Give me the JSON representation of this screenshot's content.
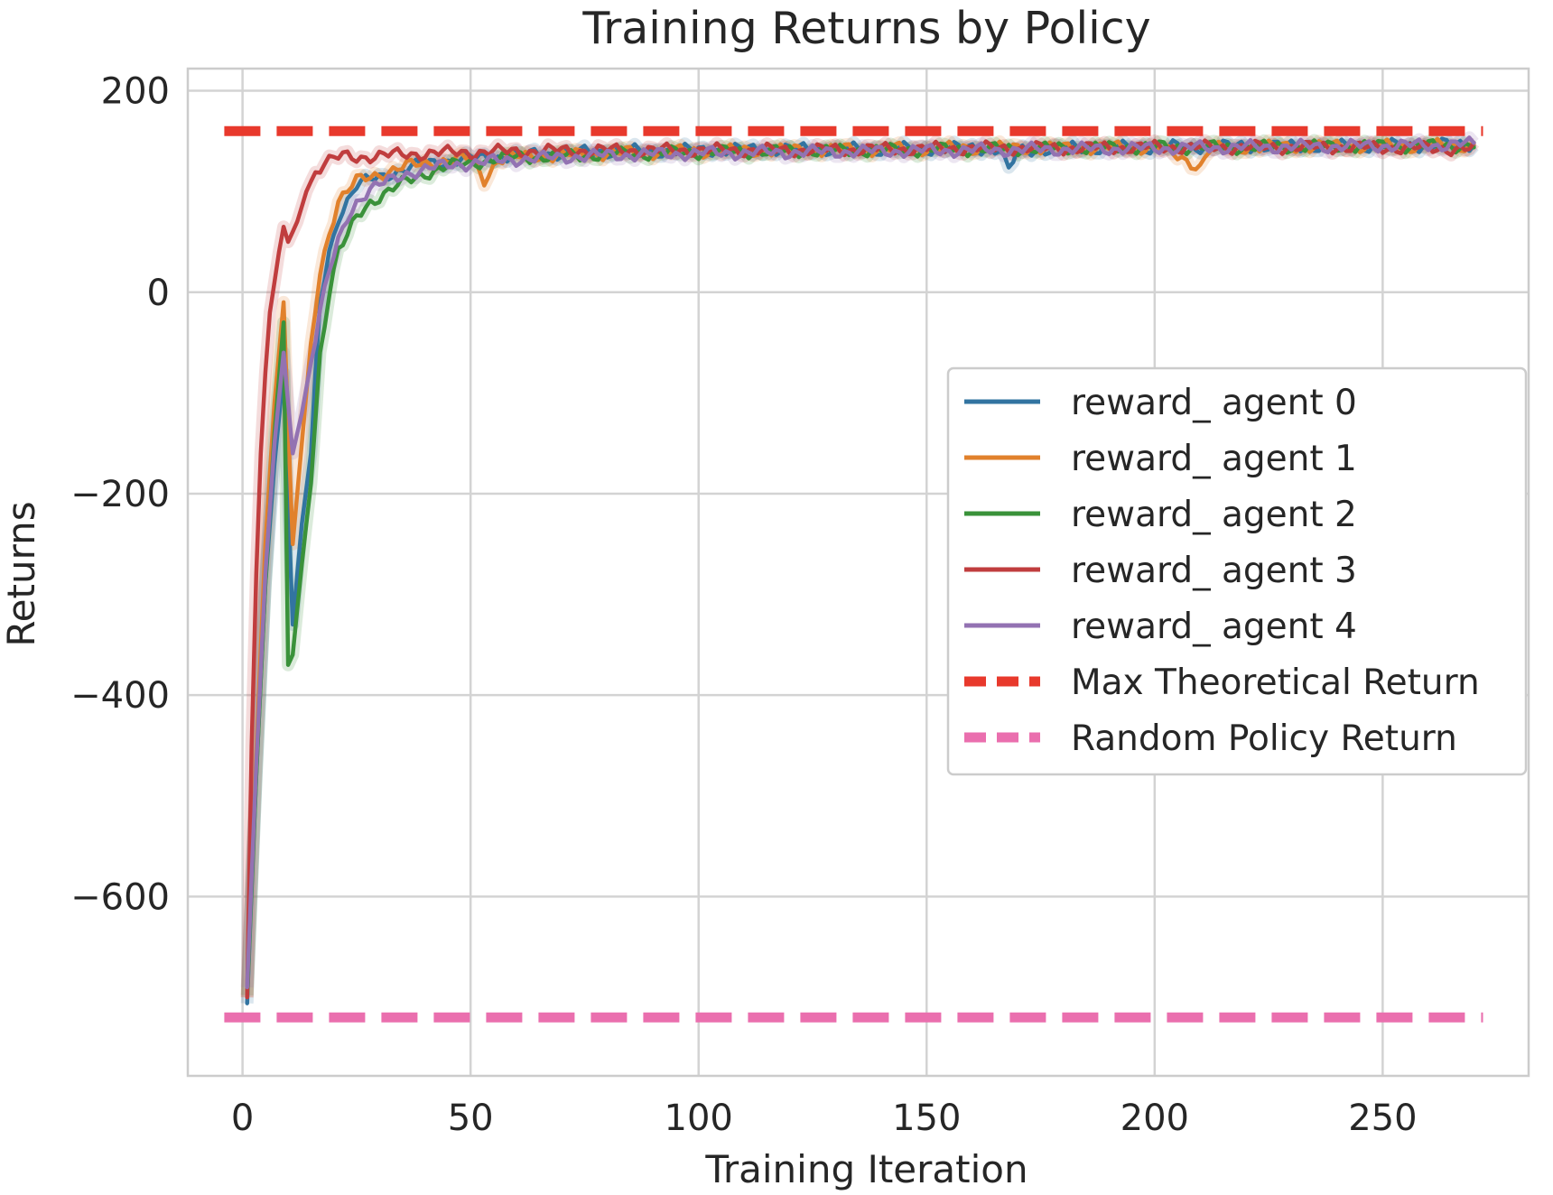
{
  "chart_data": {
    "type": "line",
    "title": "Training Returns by Policy",
    "xlabel": "Training Iteration",
    "ylabel": "Returns",
    "xlim": [
      -12,
      282
    ],
    "ylim": [
      -778,
      222
    ],
    "xticks": [
      0,
      50,
      100,
      150,
      200,
      250
    ],
    "yticks": [
      200,
      0,
      -200,
      -400,
      -600
    ],
    "ytick_labels": [
      "200",
      "0",
      "−200",
      "−400",
      "−600"
    ],
    "grid": true,
    "legend_position": "center-right",
    "series": [
      {
        "name": "reward_ agent 0",
        "color": "#3274a1",
        "points": [
          [
            1,
            -706
          ],
          [
            3,
            -480
          ],
          [
            5,
            -290
          ],
          [
            7,
            -170
          ],
          [
            9,
            -80
          ],
          [
            11,
            -330
          ],
          [
            13,
            -230
          ],
          [
            15,
            -160
          ],
          [
            17,
            -10
          ],
          [
            19,
            40
          ],
          [
            21,
            75
          ],
          [
            23,
            90
          ],
          [
            25,
            105
          ],
          [
            28,
            112
          ],
          [
            32,
            118
          ],
          [
            36,
            122
          ],
          [
            40,
            128
          ],
          [
            45,
            130
          ],
          [
            50,
            133
          ],
          [
            55,
            134
          ],
          [
            60,
            136
          ],
          [
            70,
            138
          ],
          [
            80,
            140
          ],
          [
            90,
            140
          ],
          [
            100,
            141
          ],
          [
            120,
            142
          ],
          [
            140,
            142
          ],
          [
            160,
            143
          ],
          [
            166,
            142
          ],
          [
            168,
            120
          ],
          [
            170,
            140
          ],
          [
            180,
            143
          ],
          [
            200,
            144
          ],
          [
            220,
            145
          ],
          [
            240,
            145
          ],
          [
            260,
            146
          ],
          [
            270,
            147
          ]
        ]
      },
      {
        "name": "reward_ agent 1",
        "color": "#e1812c",
        "points": [
          [
            1,
            -700
          ],
          [
            3,
            -460
          ],
          [
            5,
            -250
          ],
          [
            7,
            -110
          ],
          [
            9,
            -10
          ],
          [
            11,
            -250
          ],
          [
            13,
            -150
          ],
          [
            15,
            -50
          ],
          [
            17,
            20
          ],
          [
            19,
            60
          ],
          [
            21,
            90
          ],
          [
            23,
            100
          ],
          [
            25,
            110
          ],
          [
            28,
            115
          ],
          [
            32,
            120
          ],
          [
            36,
            125
          ],
          [
            40,
            128
          ],
          [
            45,
            131
          ],
          [
            50,
            133
          ],
          [
            53,
            112
          ],
          [
            56,
            132
          ],
          [
            60,
            134
          ],
          [
            70,
            136
          ],
          [
            80,
            138
          ],
          [
            90,
            139
          ],
          [
            100,
            140
          ],
          [
            120,
            141
          ],
          [
            140,
            142
          ],
          [
            160,
            143
          ],
          [
            180,
            143
          ],
          [
            200,
            144
          ],
          [
            210,
            125
          ],
          [
            212,
            142
          ],
          [
            220,
            144
          ],
          [
            240,
            145
          ],
          [
            260,
            145
          ],
          [
            270,
            146
          ]
        ]
      },
      {
        "name": "reward_ agent 2",
        "color": "#3a923a",
        "points": [
          [
            1,
            -698
          ],
          [
            3,
            -480
          ],
          [
            5,
            -290
          ],
          [
            7,
            -140
          ],
          [
            9,
            -30
          ],
          [
            10,
            -370
          ],
          [
            11,
            -360
          ],
          [
            13,
            -270
          ],
          [
            15,
            -190
          ],
          [
            17,
            -60
          ],
          [
            19,
            0
          ],
          [
            21,
            40
          ],
          [
            23,
            55
          ],
          [
            25,
            75
          ],
          [
            28,
            90
          ],
          [
            32,
            100
          ],
          [
            36,
            110
          ],
          [
            40,
            118
          ],
          [
            45,
            125
          ],
          [
            50,
            128
          ],
          [
            55,
            132
          ],
          [
            60,
            134
          ],
          [
            70,
            135
          ],
          [
            80,
            137
          ],
          [
            90,
            138
          ],
          [
            100,
            139
          ],
          [
            120,
            140
          ],
          [
            140,
            141
          ],
          [
            160,
            142
          ],
          [
            180,
            143
          ],
          [
            200,
            144
          ],
          [
            220,
            144
          ],
          [
            240,
            145
          ],
          [
            260,
            145
          ],
          [
            270,
            146
          ]
        ]
      },
      {
        "name": "reward_ agent 3",
        "color": "#c03d3e",
        "points": [
          [
            1,
            -700
          ],
          [
            2,
            -450
          ],
          [
            3,
            -280
          ],
          [
            4,
            -160
          ],
          [
            5,
            -80
          ],
          [
            6,
            -20
          ],
          [
            7,
            10
          ],
          [
            8,
            40
          ],
          [
            9,
            65
          ],
          [
            10,
            50
          ],
          [
            12,
            70
          ],
          [
            14,
            100
          ],
          [
            16,
            120
          ],
          [
            18,
            128
          ],
          [
            20,
            132
          ],
          [
            22,
            135
          ],
          [
            25,
            134
          ],
          [
            28,
            135
          ],
          [
            32,
            136
          ],
          [
            36,
            137
          ],
          [
            40,
            138
          ],
          [
            50,
            139
          ],
          [
            60,
            140
          ],
          [
            80,
            141
          ],
          [
            100,
            141
          ],
          [
            120,
            141
          ],
          [
            140,
            142
          ],
          [
            160,
            143
          ],
          [
            180,
            143
          ],
          [
            200,
            144
          ],
          [
            220,
            144
          ],
          [
            240,
            144
          ],
          [
            260,
            143
          ],
          [
            270,
            142
          ]
        ]
      },
      {
        "name": "reward_ agent 4",
        "color": "#9372b2",
        "points": [
          [
            1,
            -690
          ],
          [
            3,
            -470
          ],
          [
            5,
            -280
          ],
          [
            7,
            -150
          ],
          [
            9,
            -60
          ],
          [
            11,
            -160
          ],
          [
            13,
            -120
          ],
          [
            15,
            -70
          ],
          [
            17,
            -20
          ],
          [
            19,
            20
          ],
          [
            21,
            50
          ],
          [
            23,
            75
          ],
          [
            25,
            90
          ],
          [
            28,
            102
          ],
          [
            32,
            110
          ],
          [
            36,
            118
          ],
          [
            40,
            122
          ],
          [
            45,
            126
          ],
          [
            50,
            128
          ],
          [
            55,
            130
          ],
          [
            60,
            132
          ],
          [
            70,
            134
          ],
          [
            80,
            136
          ],
          [
            90,
            137
          ],
          [
            100,
            138
          ],
          [
            120,
            139
          ],
          [
            140,
            140
          ],
          [
            160,
            141
          ],
          [
            180,
            142
          ],
          [
            200,
            143
          ],
          [
            220,
            144
          ],
          [
            240,
            145
          ],
          [
            260,
            146
          ],
          [
            270,
            147
          ]
        ]
      },
      {
        "name": "Max Theoretical Return",
        "color": "#e8392c",
        "dashed": true,
        "points": [
          [
            -4,
            160
          ],
          [
            272,
            160
          ]
        ]
      },
      {
        "name": "Random Policy Return",
        "color": "#ea6fae",
        "dashed": true,
        "points": [
          [
            -4,
            -720
          ],
          [
            272,
            -720
          ]
        ]
      }
    ]
  }
}
